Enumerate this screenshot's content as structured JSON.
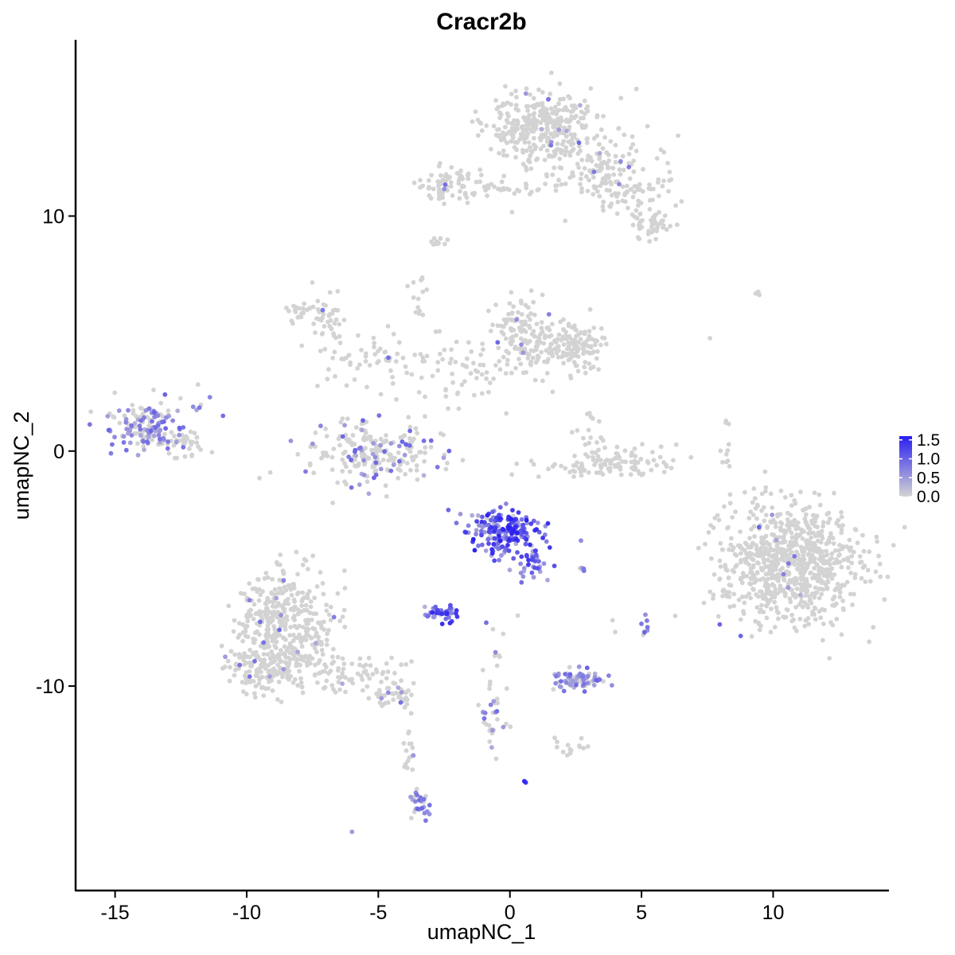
{
  "chart_data": {
    "type": "scatter",
    "title": "Cracr2b",
    "xlabel": "umapNC_1",
    "ylabel": "umapNC_2",
    "xlim": [
      -16.5,
      14.4
    ],
    "ylim": [
      -18.7,
      17.5
    ],
    "x_ticks": [
      -15,
      -10,
      -5,
      0,
      5,
      10
    ],
    "x_tick_labels": [
      "-15",
      "-10",
      "-5",
      "0",
      "5",
      "10"
    ],
    "y_ticks": [
      -10,
      0,
      10
    ],
    "y_tick_labels": [
      "-10",
      "0",
      "10"
    ],
    "grid": false,
    "legend": {
      "placement": "right",
      "type": "colorbar",
      "min": 0.0,
      "max": 1.6,
      "ticks": [
        0.0,
        0.5,
        1.0,
        1.5
      ],
      "tick_labels": [
        "0.0",
        "0.5",
        "1.0",
        "1.5"
      ],
      "low_color": "#d3d3d3",
      "high_color": "#2a1ff0"
    },
    "clusters": [
      {
        "cx": 1.0,
        "cy": 14.0,
        "sx": 1.0,
        "sy": 0.7,
        "n": 300,
        "expr": 0.02,
        "maxv": 1.0
      },
      {
        "cx": 2.8,
        "cy": 12.2,
        "sx": 1.2,
        "sy": 0.8,
        "n": 160,
        "expr": 0.03,
        "maxv": 1.0
      },
      {
        "cx": 4.6,
        "cy": 11.0,
        "sx": 0.9,
        "sy": 0.6,
        "n": 70,
        "expr": 0.0,
        "maxv": 0.5
      },
      {
        "cx": 5.4,
        "cy": 9.6,
        "sx": 0.4,
        "sy": 0.3,
        "n": 45,
        "expr": 0.0,
        "maxv": 0.5
      },
      {
        "cx": -2.5,
        "cy": 11.3,
        "sx": 0.6,
        "sy": 0.4,
        "n": 70,
        "expr": 0.05,
        "maxv": 1.0
      },
      {
        "cx": -0.5,
        "cy": 11.2,
        "sx": 0.8,
        "sy": 0.15,
        "n": 30,
        "expr": 0.0,
        "maxv": 0.5
      },
      {
        "cx": 0.4,
        "cy": 5.0,
        "sx": 0.5,
        "sy": 0.8,
        "n": 110,
        "expr": 0.04,
        "maxv": 1.0
      },
      {
        "cx": 2.2,
        "cy": 4.4,
        "sx": 0.7,
        "sy": 0.5,
        "n": 160,
        "expr": 0.0,
        "maxv": 0.5
      },
      {
        "cx": -7.0,
        "cy": 5.5,
        "sx": 0.4,
        "sy": 0.5,
        "n": 40,
        "expr": 0.05,
        "maxv": 1.0
      },
      {
        "cx": -5.0,
        "cy": 4.0,
        "sx": 1.4,
        "sy": 0.6,
        "n": 60,
        "expr": 0.02,
        "maxv": 1.0
      },
      {
        "cx": -2.0,
        "cy": 3.3,
        "sx": 1.0,
        "sy": 0.7,
        "n": 60,
        "expr": 0.0,
        "maxv": 0.5
      },
      {
        "cx": -3.5,
        "cy": 6.5,
        "sx": 0.2,
        "sy": 0.6,
        "n": 14,
        "expr": 0.0,
        "maxv": 0.5
      },
      {
        "cx": -5.2,
        "cy": -0.1,
        "sx": 1.3,
        "sy": 0.7,
        "n": 220,
        "expr": 0.18,
        "maxv": 1.0
      },
      {
        "cx": -13.8,
        "cy": 1.1,
        "sx": 0.8,
        "sy": 0.55,
        "n": 150,
        "expr": 0.6,
        "maxv": 1.0
      },
      {
        "cx": -12.3,
        "cy": 0.3,
        "sx": 0.45,
        "sy": 0.35,
        "n": 30,
        "expr": 0.03,
        "maxv": 0.5
      },
      {
        "cx": -11.8,
        "cy": 2.2,
        "sx": 0.3,
        "sy": 0.3,
        "n": 6,
        "expr": 0.5,
        "maxv": 1.0
      },
      {
        "cx": 3.7,
        "cy": -0.6,
        "sx": 1.3,
        "sy": 0.3,
        "n": 110,
        "expr": 0.0,
        "maxv": 0.5
      },
      {
        "cx": 3.2,
        "cy": 0.8,
        "sx": 0.3,
        "sy": 0.5,
        "n": 20,
        "expr": 0.0,
        "maxv": 0.5
      },
      {
        "cx": 10.7,
        "cy": -4.8,
        "sx": 1.3,
        "sy": 1.3,
        "n": 800,
        "expr": 0.01,
        "maxv": 1.0
      },
      {
        "cx": -0.3,
        "cy": -3.4,
        "sx": 0.7,
        "sy": 0.45,
        "n": 200,
        "expr": 0.95,
        "maxv": 1.6
      },
      {
        "cx": 0.8,
        "cy": -4.7,
        "sx": 0.4,
        "sy": 0.35,
        "n": 40,
        "expr": 0.9,
        "maxv": 1.4
      },
      {
        "cx": -2.6,
        "cy": -6.9,
        "sx": 0.3,
        "sy": 0.2,
        "n": 40,
        "expr": 0.95,
        "maxv": 1.5
      },
      {
        "cx": -8.5,
        "cy": -7.5,
        "sx": 0.9,
        "sy": 1.2,
        "n": 400,
        "expr": 0.03,
        "maxv": 1.0
      },
      {
        "cx": -9.5,
        "cy": -9.3,
        "sx": 0.8,
        "sy": 0.5,
        "n": 110,
        "expr": 0.03,
        "maxv": 1.0
      },
      {
        "cx": -6.0,
        "cy": -9.4,
        "sx": 1.1,
        "sy": 0.4,
        "n": 70,
        "expr": 0.02,
        "maxv": 1.0
      },
      {
        "cx": -4.3,
        "cy": -10.4,
        "sx": 0.4,
        "sy": 0.3,
        "n": 40,
        "expr": 0.05,
        "maxv": 1.0
      },
      {
        "cx": 2.5,
        "cy": -9.7,
        "sx": 0.5,
        "sy": 0.2,
        "n": 80,
        "expr": 0.55,
        "maxv": 1.0
      },
      {
        "cx": -3.4,
        "cy": -15.0,
        "sx": 0.2,
        "sy": 0.4,
        "n": 30,
        "expr": 0.7,
        "maxv": 1.0
      },
      {
        "cx": -3.8,
        "cy": -12.8,
        "sx": 0.15,
        "sy": 0.6,
        "n": 16,
        "expr": 0.1,
        "maxv": 1.0
      },
      {
        "cx": 2.3,
        "cy": -12.6,
        "sx": 0.3,
        "sy": 0.15,
        "n": 14,
        "expr": 0.0,
        "maxv": 0.5
      },
      {
        "cx": 5.1,
        "cy": -7.4,
        "sx": 0.08,
        "sy": 0.3,
        "n": 8,
        "expr": 0.8,
        "maxv": 1.0
      },
      {
        "cx": 2.8,
        "cy": -5.0,
        "sx": 0.1,
        "sy": 0.06,
        "n": 5,
        "expr": 0.8,
        "maxv": 1.0
      },
      {
        "cx": 8.2,
        "cy": -0.3,
        "sx": 0.15,
        "sy": 1.0,
        "n": 12,
        "expr": 0.0,
        "maxv": 0.5
      },
      {
        "cx": -0.6,
        "cy": -11.0,
        "sx": 0.25,
        "sy": 1.3,
        "n": 40,
        "expr": 0.2,
        "maxv": 1.0
      },
      {
        "cx": -8.0,
        "cy": 5.9,
        "sx": 0.3,
        "sy": 0.2,
        "n": 20,
        "expr": 0.0,
        "maxv": 0.5
      },
      {
        "cx": -2.7,
        "cy": 8.9,
        "sx": 0.2,
        "sy": 0.12,
        "n": 10,
        "expr": 0.0,
        "maxv": 0.5
      },
      {
        "cx": 9.5,
        "cy": 6.7,
        "sx": 0.15,
        "sy": 0.05,
        "n": 4,
        "expr": 0.0,
        "maxv": 0.5
      }
    ],
    "points": [
      {
        "x": 0.6,
        "y": -14.1,
        "v": 1.4
      },
      {
        "x": 0.55,
        "y": -14.05,
        "v": 1.5
      },
      {
        "x": -6.0,
        "y": -16.2,
        "v": 0.5
      },
      {
        "x": -10.9,
        "y": 1.5,
        "v": 0.9
      },
      {
        "x": -0.9,
        "y": -7.3,
        "v": 0.9
      },
      {
        "x": 7.6,
        "y": 4.8,
        "v": 0.0
      },
      {
        "x": 4.0,
        "y": -7.7,
        "v": 0.0
      },
      {
        "x": 3.9,
        "y": -7.2,
        "v": 0.0
      },
      {
        "x": 1.7,
        "y": -12.2,
        "v": 0.0
      },
      {
        "x": 0.3,
        "y": -7.0,
        "v": 0.0
      }
    ]
  }
}
